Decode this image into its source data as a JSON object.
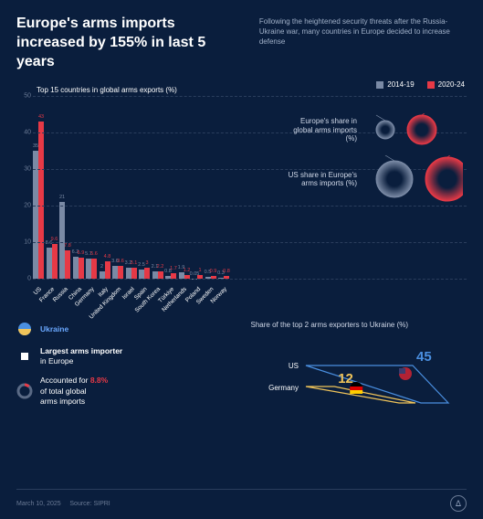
{
  "title": "Europe's arms imports increased by 155% in last 5 years",
  "subtitle": "Following the heightened security threats after the Russia-Ukraine war, many countries in Europe decided to increase defense",
  "chart_title": "Top 15 countries in global arms exports (%)",
  "legend": {
    "period1": "2014-19",
    "period2": "2020-24"
  },
  "colors": {
    "period1": "#7a8aa5",
    "period2": "#e63946",
    "bg": "#0a1e3d",
    "grid": "#2a3d5c",
    "text_dim": "#a0b0c8",
    "highlight_red": "#e63946",
    "highlight_blue": "#6aa8ff"
  },
  "y_axis": {
    "max": 50,
    "ticks": [
      0,
      10,
      20,
      30,
      40,
      50
    ]
  },
  "countries": [
    {
      "name": "US",
      "v1": 35,
      "v2": 43
    },
    {
      "name": "France",
      "v1": 8.6,
      "v2": 9.6
    },
    {
      "name": "Russia",
      "v1": 21,
      "v2": 7.8
    },
    {
      "name": "China",
      "v1": 6.2,
      "v2": 5.9
    },
    {
      "name": "Germany",
      "v1": 5.7,
      "v2": 5.6
    },
    {
      "name": "Italy",
      "v1": 2,
      "v2": 4.8
    },
    {
      "name": "United Kingdom",
      "v1": 3.6,
      "v2": 3.6
    },
    {
      "name": "Israel",
      "v1": 3.2,
      "v2": 3.1
    },
    {
      "name": "Spain",
      "v1": 2.5,
      "v2": 3
    },
    {
      "name": "South Korea",
      "v1": 2.1,
      "v2": 2.2
    },
    {
      "name": "Türkiye",
      "v1": 0.8,
      "v2": 1.7
    },
    {
      "name": "Netherlands",
      "v1": 1.9,
      "v2": 1.2
    },
    {
      "name": "Poland",
      "v1": 0.05,
      "v2": 1
    },
    {
      "name": "Sweden",
      "v1": 0.5,
      "v2": 0.9
    },
    {
      "name": "Norway",
      "v1": 0.3,
      "v2": 0.8
    }
  ],
  "circles": [
    {
      "text": "Europe's share in global arms imports (%)",
      "v1": 11,
      "v2": 28,
      "r1": 10,
      "r2": 16
    },
    {
      "text": "US share in Europe's arms imports (%)",
      "v1": 52,
      "v2": 64,
      "r1": 20,
      "r2": 24
    }
  ],
  "facts": {
    "ukraine_label": "Ukraine",
    "largest_line1": "Largest arms importer",
    "largest_line2": "in Europe",
    "accounted_pre": "Accounted for ",
    "accounted_pct": "8.8%",
    "accounted_post1": "of total global",
    "accounted_post2": "arms imports"
  },
  "parallel": {
    "title": "Share of the top 2 arms exporters to Ukraine (%)",
    "us": {
      "label": "US",
      "val": 45,
      "color": "#4a8fe0"
    },
    "germany": {
      "label": "Germany",
      "val": 12,
      "color": "#f0c45a"
    }
  },
  "footer": {
    "date": "March 10, 2025",
    "source_label": "Source:",
    "source": "SIPRI"
  }
}
